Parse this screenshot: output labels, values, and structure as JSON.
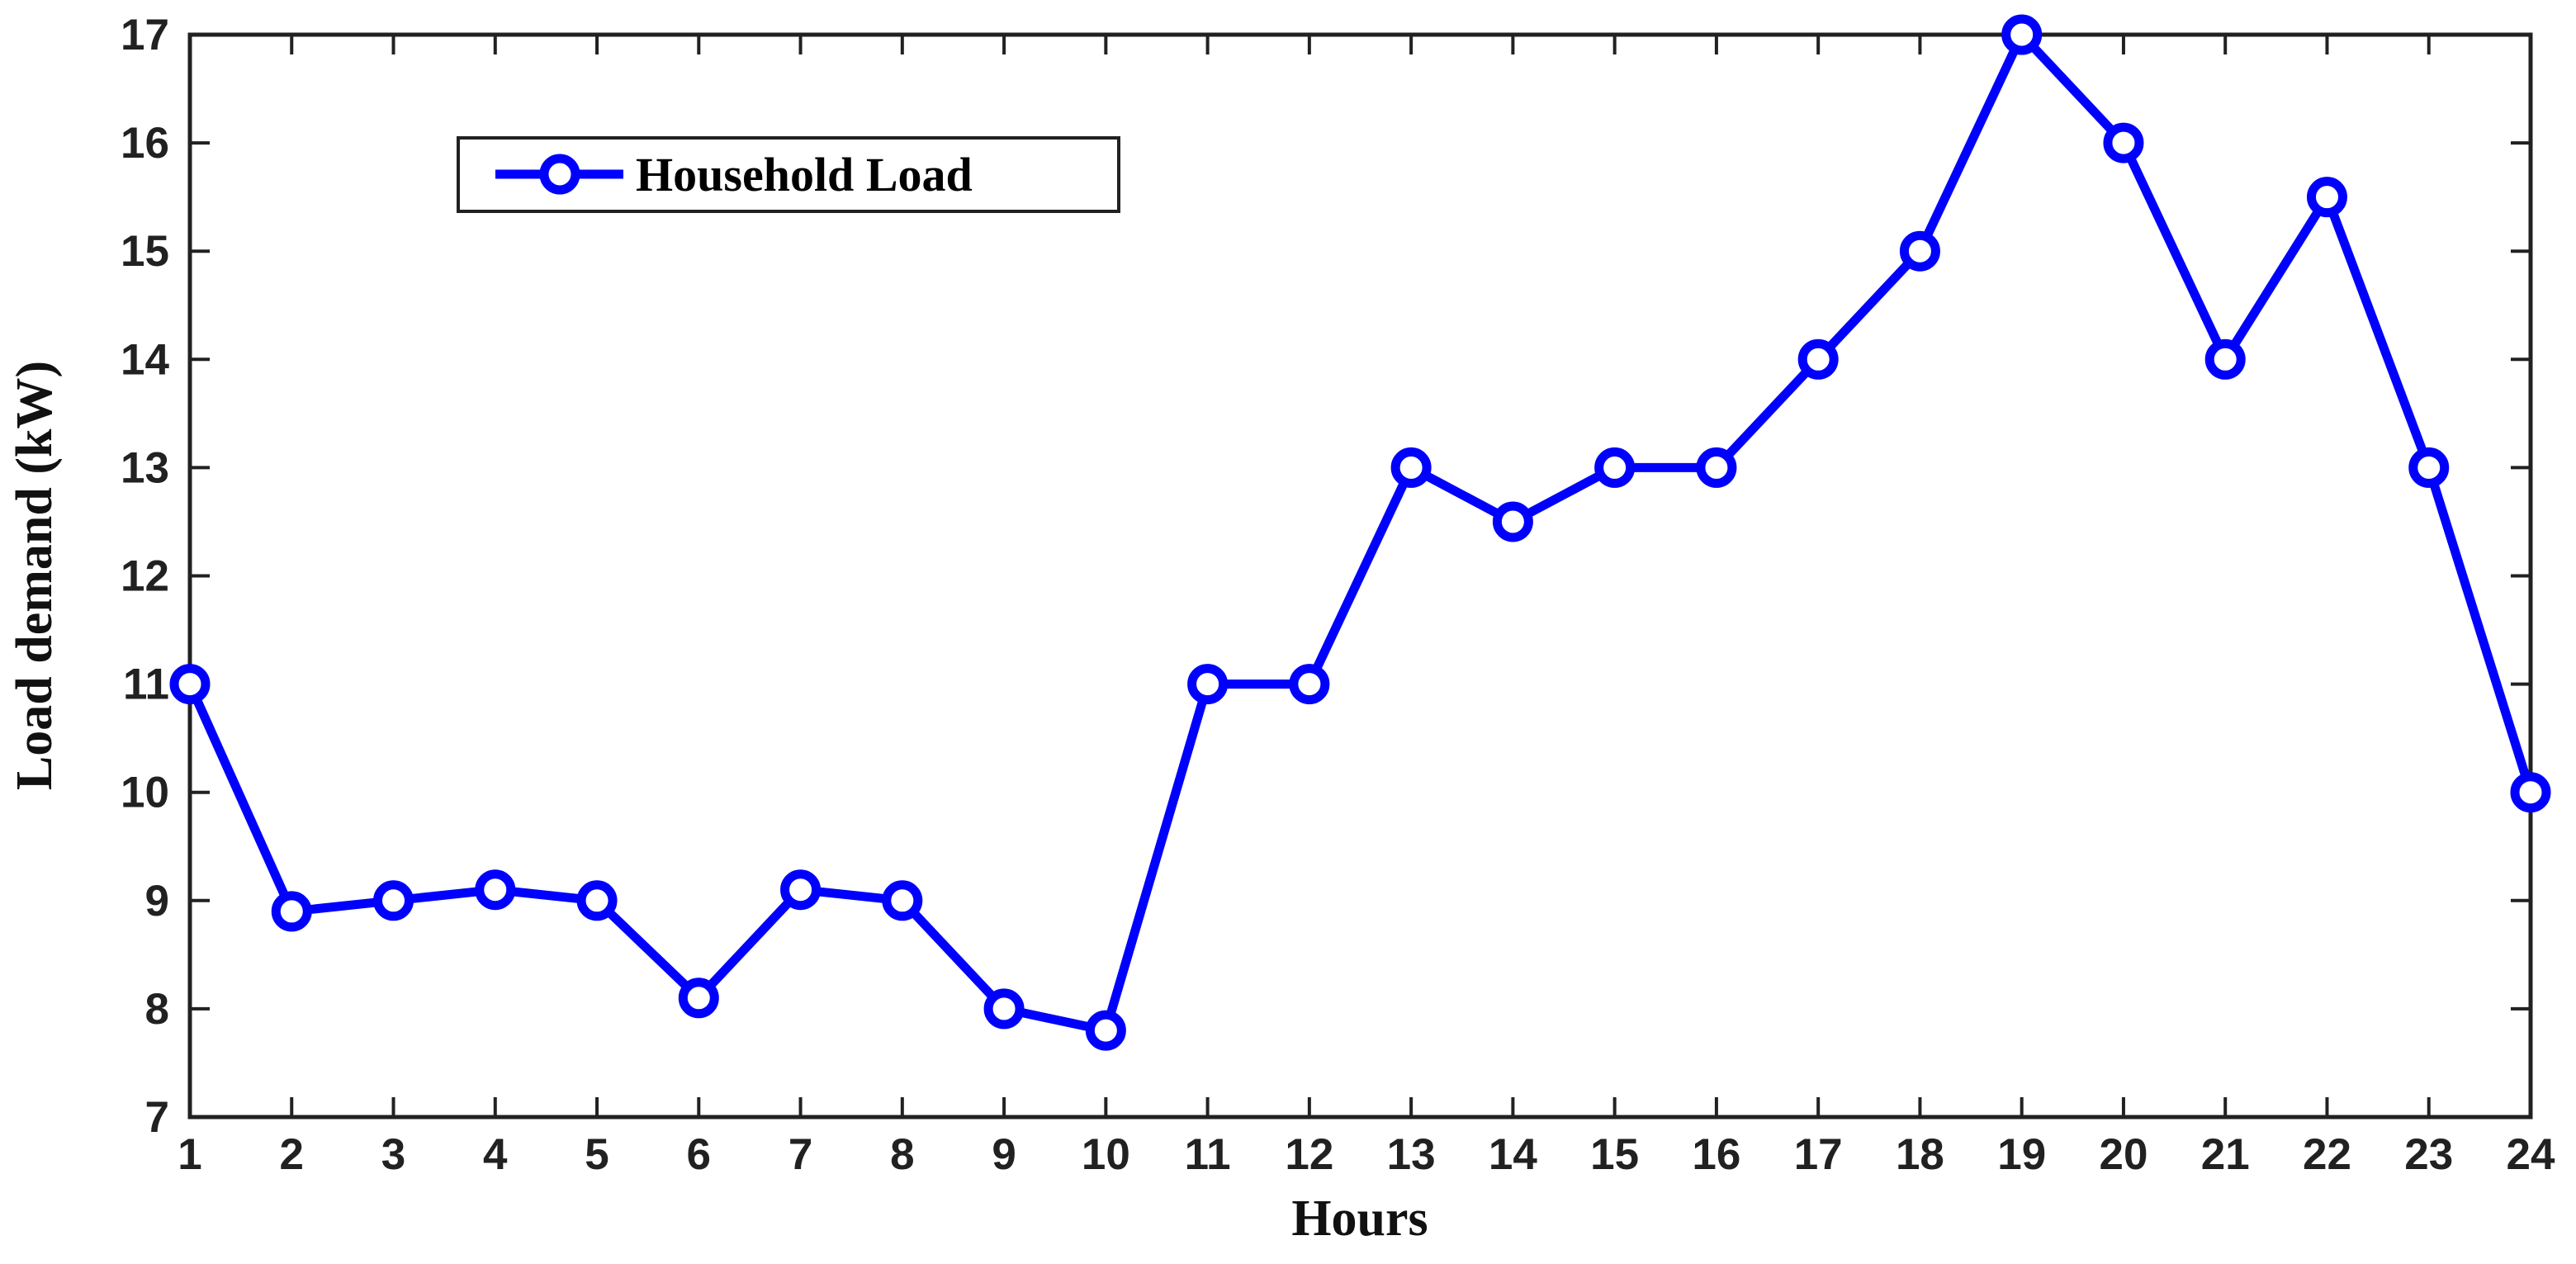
{
  "figure": {
    "background": "#FFFFFF",
    "axis_color": "#212121",
    "tick_label_color": "#212121"
  },
  "chart_data": {
    "type": "line",
    "title": "",
    "xlabel": "Hours",
    "ylabel": "Load demand (kW)",
    "x": [
      1,
      2,
      3,
      4,
      5,
      6,
      7,
      8,
      9,
      10,
      11,
      12,
      13,
      14,
      15,
      16,
      17,
      18,
      19,
      20,
      21,
      22,
      23,
      24
    ],
    "series": [
      {
        "name": "Household Load",
        "color": "#0000FF",
        "marker": "open-circle",
        "values": [
          11,
          8.9,
          9,
          9.1,
          9,
          8.1,
          9.1,
          9,
          8,
          7.8,
          11,
          11,
          13,
          12.5,
          13,
          13,
          14,
          15,
          17,
          16,
          14,
          15.5,
          13,
          10
        ]
      }
    ],
    "xlim": [
      1,
      24
    ],
    "ylim": [
      7,
      17
    ],
    "x_ticks": [
      1,
      2,
      3,
      4,
      5,
      6,
      7,
      8,
      9,
      10,
      11,
      12,
      13,
      14,
      15,
      16,
      17,
      18,
      19,
      20,
      21,
      22,
      23,
      24
    ],
    "y_ticks": [
      7,
      8,
      9,
      10,
      11,
      12,
      13,
      14,
      15,
      16,
      17
    ],
    "grid": false,
    "legend": {
      "position": "upper-left-inside",
      "entries": [
        "Household Load"
      ]
    }
  }
}
